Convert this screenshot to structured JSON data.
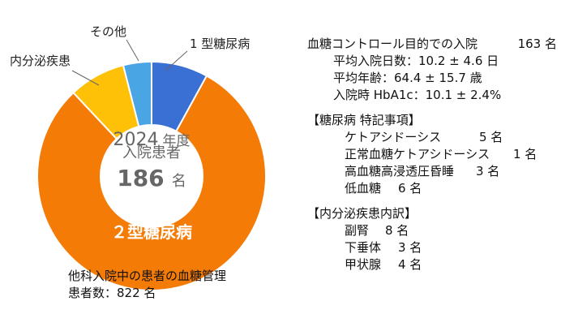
{
  "chart_data": {
    "type": "pie",
    "categories": [
      "1 型糖尿病",
      "2 型糖尿病",
      "内分泌疾患",
      "その他"
    ],
    "values": [
      8,
      80,
      8,
      4
    ],
    "colors": [
      "#3a6fd3",
      "#f57b07",
      "#ffc107",
      "#49a5e3"
    ],
    "center_label": {
      "line1_year": "2024",
      "line1_suffix": "年度",
      "line2": "入院患者",
      "line3_value": "186",
      "line3_suffix": "名"
    },
    "annotations": {
      "type1": "1 型糖尿病",
      "type2": "２型糖尿病",
      "endocrine": "内分泌疾患",
      "other": "その他"
    }
  },
  "notes": {
    "title": "他科入院中の患者の血糖管理",
    "subtitle": "患者数：822 名"
  },
  "summary": {
    "headline_label": "血糖コントロール目的での入院",
    "headline_value": "163 名",
    "rows": [
      "平均入院日数：10.2 ± 4.6 日",
      "平均年齢：64.4 ± 15.7 歳",
      "入院時 HbA1c：10.1 ± 2.4%"
    ]
  },
  "diabetes_notes": {
    "title": "【糖尿病 特記事項】",
    "items": [
      {
        "label": "ケトアシドーシス",
        "value": "5 名"
      },
      {
        "label": "正常血糖ケトアシドーシス",
        "value": "1 名"
      },
      {
        "label": "高血糖高浸透圧昏睡",
        "value": "3 名"
      },
      {
        "label": "低血糖",
        "value": "6 名"
      }
    ]
  },
  "endocrine_notes": {
    "title": "【内分泌疾患内訳】",
    "items": [
      {
        "label": "副腎",
        "value": "8 名"
      },
      {
        "label": "下垂体",
        "value": "3 名"
      },
      {
        "label": "甲状腺",
        "value": "4 名"
      }
    ]
  }
}
